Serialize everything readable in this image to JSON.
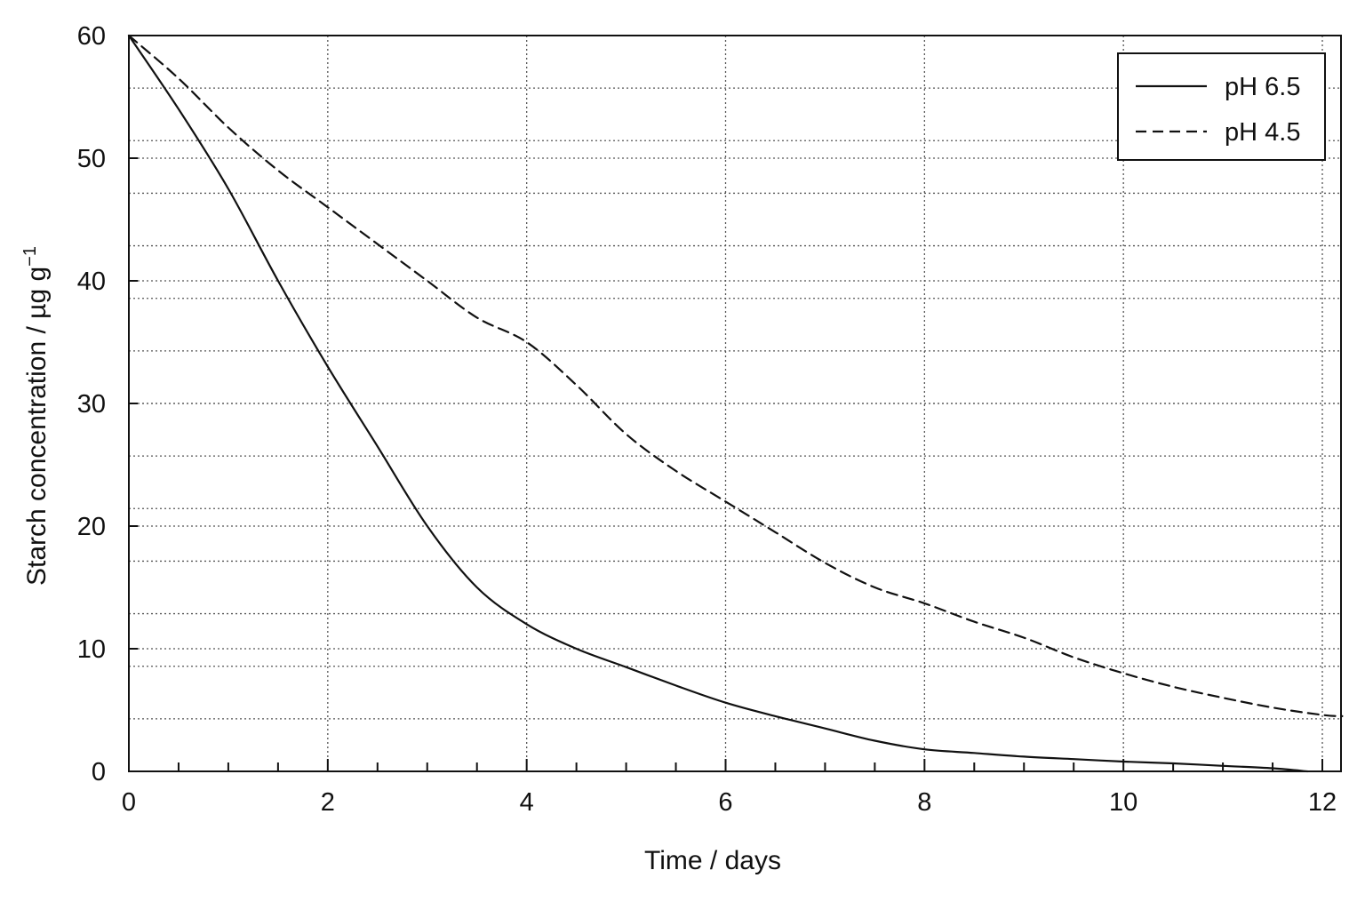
{
  "chart_data": {
    "type": "line",
    "title": "",
    "xlabel": "Time / days",
    "ylabel_main": "Starch concentration / µg g",
    "ylabel_superscript": "−1",
    "xlim": [
      0,
      12.2
    ],
    "ylim": [
      0,
      60
    ],
    "x_ticks": [
      0,
      2,
      4,
      6,
      8,
      10,
      12
    ],
    "x_tick_labels": [
      "0",
      "2",
      "4",
      "6",
      "8",
      "10",
      "12"
    ],
    "x_minor_step": 0.5,
    "y_ticks": [
      0,
      10,
      20,
      30,
      40,
      50,
      60
    ],
    "y_tick_labels": [
      "0",
      "10",
      "20",
      "30",
      "40",
      "50",
      "60"
    ],
    "grid": true,
    "legend_position": "top-right",
    "series": [
      {
        "name": "pH 6.5",
        "line_style": "solid",
        "color": "#111111",
        "x": [
          0,
          0.5,
          1,
          1.5,
          2,
          2.5,
          3,
          3.5,
          4,
          4.5,
          5,
          5.5,
          6,
          6.5,
          7,
          7.5,
          8,
          8.5,
          9,
          9.5,
          10,
          10.5,
          11,
          11.5,
          11.85
        ],
        "y": [
          60,
          54,
          47.5,
          40,
          33,
          26.5,
          20,
          15,
          12,
          10,
          8.5,
          7,
          5.6,
          4.5,
          3.5,
          2.5,
          1.8,
          1.5,
          1.2,
          1.0,
          0.8,
          0.65,
          0.45,
          0.25,
          0
        ]
      },
      {
        "name": "pH 4.5",
        "line_style": "dashed",
        "color": "#111111",
        "x": [
          0,
          0.5,
          1,
          1.5,
          2,
          2.5,
          3,
          3.5,
          4,
          4.5,
          5,
          5.5,
          6,
          6.5,
          7,
          7.5,
          8,
          8.5,
          9,
          9.5,
          10,
          10.5,
          11,
          11.5,
          12,
          12.2
        ],
        "y": [
          60,
          56.5,
          52.5,
          49,
          46,
          43,
          40,
          37,
          35,
          31.5,
          27.5,
          24.5,
          22,
          19.5,
          17,
          15,
          13.7,
          12.2,
          10.9,
          9.3,
          8,
          6.9,
          6,
          5.2,
          4.6,
          4.5
        ]
      }
    ]
  }
}
